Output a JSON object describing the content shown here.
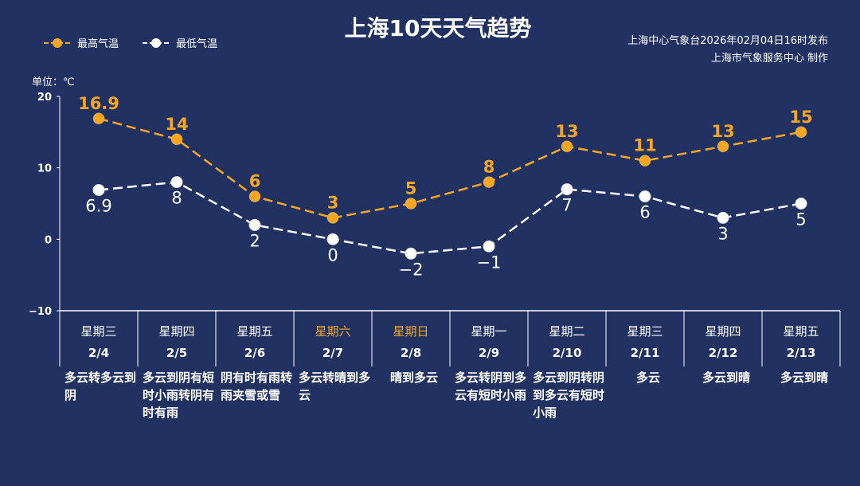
{
  "title": "上海10天天气趋势",
  "source_line1": "上海中心气象台2026年02月04日16时发布",
  "source_line2": "上海市气象服务中心 制作",
  "unit_label": "单位：℃",
  "colors": {
    "background": "#213262",
    "high": "#f5a623",
    "low": "#ffffff",
    "weekend": "#f5a623"
  },
  "chart_data": {
    "type": "line",
    "title": "上海10天天气趋势",
    "ylim": [
      -10,
      20
    ],
    "yticks": [
      "20",
      "10",
      "0",
      "−10"
    ],
    "yticks_values": [
      20,
      10,
      0,
      -10
    ],
    "grid": false,
    "legend_placement": "top-left",
    "categories": [
      "2/4",
      "2/5",
      "2/6",
      "2/7",
      "2/8",
      "2/9",
      "2/10",
      "2/11",
      "2/12",
      "2/13"
    ],
    "weekdays": [
      "星期三",
      "星期四",
      "星期五",
      "星期六",
      "星期日",
      "星期一",
      "星期二",
      "星期三",
      "星期四",
      "星期五"
    ],
    "weekend": [
      false,
      false,
      false,
      true,
      true,
      false,
      false,
      false,
      false,
      false
    ],
    "weather": [
      "多云转多云到阴",
      "多云到阴有短时小雨转阴有时有雨",
      "阴有时有雨转雨夹雪或雪",
      "多云转晴到多云",
      "晴到多云",
      "多云转阴到多云有短时小雨",
      "多云到阴转阴到多云有短时小雨",
      "多云",
      "多云到晴",
      "多云到晴"
    ],
    "series": [
      {
        "name": "最高气温",
        "values": [
          16.9,
          14,
          6,
          3,
          5,
          8,
          13,
          11,
          13,
          15
        ],
        "labels": [
          "16.9",
          "14",
          "6",
          "3",
          "5",
          "8",
          "13",
          "11",
          "13",
          "15"
        ]
      },
      {
        "name": "最低气温",
        "values": [
          6.9,
          8,
          2,
          0,
          -2,
          -1,
          7,
          6,
          3,
          5
        ],
        "labels": [
          "6.9",
          "8",
          "2",
          "0",
          "−2",
          "−1",
          "7",
          "6",
          "3",
          "5"
        ]
      }
    ]
  }
}
